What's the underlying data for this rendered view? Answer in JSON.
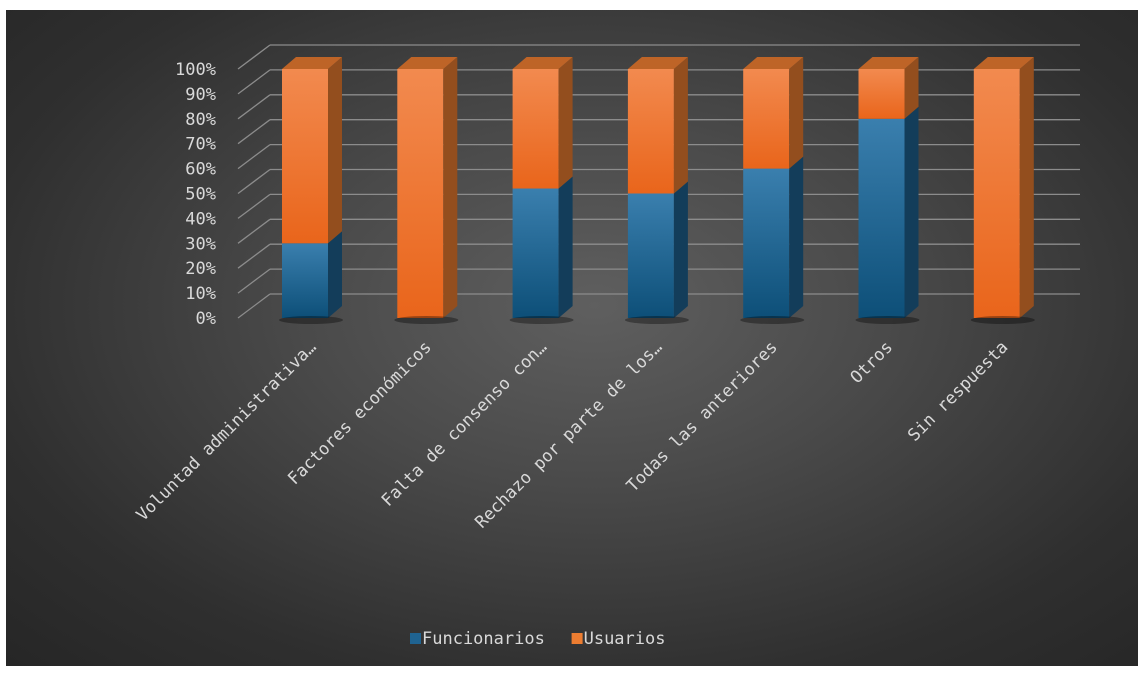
{
  "chart_data": {
    "type": "bar",
    "stacked": true,
    "percent": true,
    "categories": [
      "Voluntad administrativa…",
      "Factores económicos",
      "Falta de consenso con…",
      "Rechazo por parte de los…",
      "Todas las anteriores",
      "Otros",
      "Sin respuesta"
    ],
    "series": [
      {
        "name": "Funcionarios",
        "color": "#1f6391",
        "values": [
          30,
          0,
          52,
          50,
          60,
          80,
          0
        ]
      },
      {
        "name": "Usuarios",
        "color": "#ed7d31",
        "values": [
          70,
          100,
          48,
          50,
          40,
          20,
          100
        ]
      }
    ],
    "yticks": [
      "0%",
      "10%",
      "20%",
      "30%",
      "40%",
      "50%",
      "60%",
      "70%",
      "80%",
      "90%",
      "100%"
    ],
    "ylim": [
      0,
      100
    ],
    "grid": true,
    "legend": "bottom",
    "style": "3d-column",
    "background": "#3f3f3f"
  }
}
